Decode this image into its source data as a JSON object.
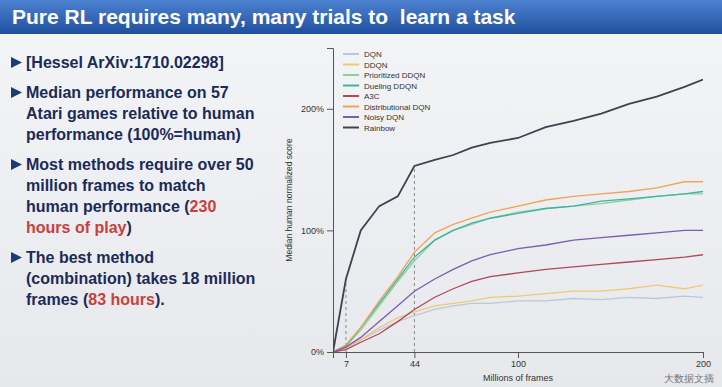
{
  "slide": {
    "title": "Pure RL requires many, many trials to  learn a task",
    "bullets": [
      [
        {
          "text": "[Hessel ArXiv:1710.02298]"
        }
      ],
      [
        {
          "text": "Median performance on 57 Atari games relative to human performance (100%=human)"
        }
      ],
      [
        {
          "text": "Most methods require over 50 million frames to match human performance ("
        },
        {
          "text": "230 hours of play",
          "color": "#c8413c"
        },
        {
          "text": ")"
        }
      ],
      [
        {
          "text": "The best method (combination) takes 18 million frames ("
        },
        {
          "text": "83 hours",
          "color": "#c8413c"
        },
        {
          "text": ")."
        }
      ]
    ]
  },
  "watermark": "大数据文摘",
  "chart_data": {
    "type": "line",
    "x_label": "Millions of frames",
    "y_label": "Median human normalized score",
    "x": [
      0,
      7,
      15,
      25,
      35,
      44,
      55,
      65,
      75,
      85,
      100,
      115,
      130,
      145,
      160,
      175,
      190,
      200
    ],
    "xlim": [
      0,
      200
    ],
    "xticks": [
      7,
      44,
      100,
      200
    ],
    "ylim": [
      0,
      250
    ],
    "yticks": [
      {
        "value": 0,
        "label": "0%"
      },
      {
        "value": 100,
        "label": "100%"
      },
      {
        "value": 200,
        "label": "200%"
      }
    ],
    "reference_lines": [
      7,
      44
    ],
    "grid": false,
    "legend": "upper left",
    "series": [
      {
        "name": "DQN",
        "color": "#b9c9dc",
        "values": [
          0,
          3,
          10,
          18,
          25,
          30,
          35,
          38,
          40,
          40,
          42,
          42,
          44,
          43,
          45,
          44,
          46,
          45
        ]
      },
      {
        "name": "DDQN",
        "color": "#f0c878",
        "values": [
          0,
          3,
          10,
          20,
          28,
          33,
          38,
          40,
          42,
          45,
          46,
          48,
          50,
          50,
          52,
          55,
          52,
          55
        ]
      },
      {
        "name": "Prioritized DDQN",
        "color": "#8fcf9a",
        "values": [
          0,
          5,
          18,
          38,
          58,
          75,
          92,
          100,
          105,
          110,
          115,
          118,
          120,
          122,
          125,
          128,
          130,
          130
        ]
      },
      {
        "name": "Dueling DDQN",
        "color": "#3fb3a6",
        "values": [
          0,
          5,
          20,
          40,
          60,
          78,
          92,
          100,
          106,
          110,
          114,
          118,
          120,
          124,
          126,
          128,
          130,
          132
        ]
      },
      {
        "name": "A3C",
        "color": "#b04858",
        "values": [
          0,
          2,
          8,
          15,
          25,
          35,
          45,
          52,
          58,
          62,
          65,
          68,
          70,
          72,
          74,
          76,
          78,
          80
        ]
      },
      {
        "name": "Distributional DQN",
        "color": "#f0a455",
        "values": [
          0,
          6,
          20,
          42,
          62,
          82,
          98,
          105,
          110,
          115,
          120,
          125,
          128,
          130,
          132,
          135,
          140,
          140
        ]
      },
      {
        "name": "Noisy DQN",
        "color": "#7a5cb0",
        "values": [
          0,
          4,
          12,
          25,
          38,
          50,
          60,
          68,
          75,
          80,
          85,
          88,
          92,
          94,
          96,
          98,
          100,
          100
        ]
      },
      {
        "name": "Rainbow",
        "color": "#3c4450",
        "values": [
          0,
          60,
          100,
          120,
          128,
          153,
          158,
          162,
          168,
          172,
          176,
          185,
          190,
          196,
          204,
          210,
          218,
          224
        ]
      }
    ]
  }
}
